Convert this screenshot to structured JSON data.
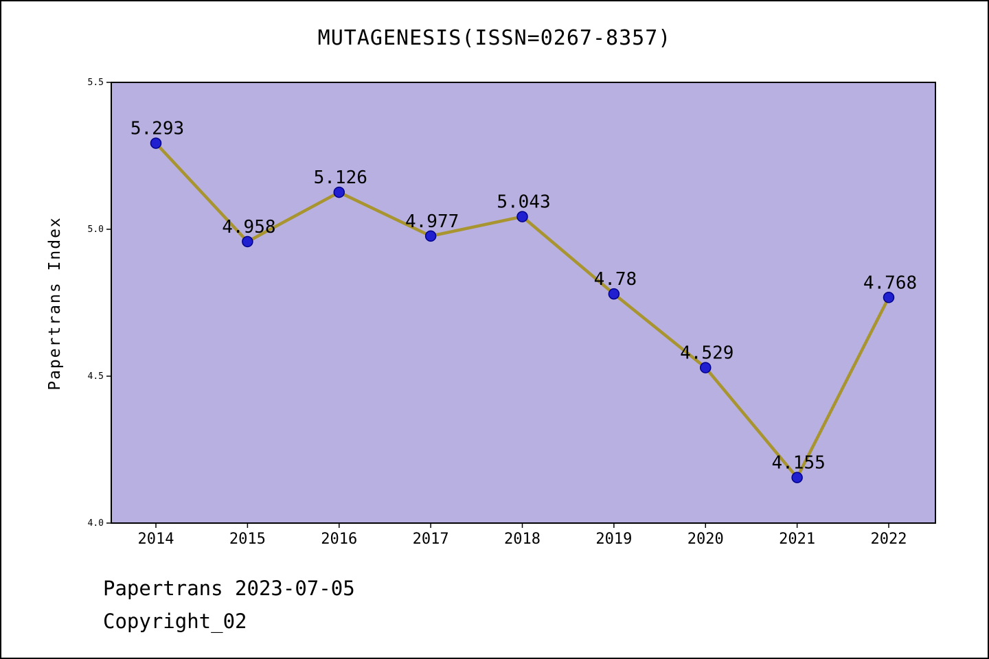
{
  "title": "MUTAGENESIS(ISSN=0267-8357)",
  "footer": {
    "line1": "Papertrans 2023-07-05",
    "line2": "Copyright_02"
  },
  "chart_data": {
    "type": "line",
    "title": "MUTAGENESIS(ISSN=0267-8357)",
    "xlabel": "",
    "ylabel": "Papertrans Index",
    "categories": [
      "2014",
      "2015",
      "2016",
      "2017",
      "2018",
      "2019",
      "2020",
      "2021",
      "2022"
    ],
    "values": [
      5.293,
      4.958,
      5.126,
      4.977,
      5.043,
      4.78,
      4.529,
      4.155,
      4.768
    ],
    "point_labels": [
      "5.293",
      "4.958",
      "5.126",
      "4.977",
      "5.043",
      "4.78",
      "4.529",
      "4.155",
      "4.768"
    ],
    "ylim": [
      4.0,
      5.5
    ],
    "yticks": [
      4.0,
      4.5,
      5.0,
      5.5
    ],
    "ytick_labels": [
      "4.0",
      "4.5",
      "5.0",
      "5.5"
    ],
    "grid": false,
    "legend": "none",
    "colors": {
      "plot_background": "#b8b0e0",
      "line": "#a89530",
      "marker_fill": "#2020d0",
      "marker_edge": "#00008b",
      "axis": "#000000",
      "text": "#000000"
    }
  }
}
